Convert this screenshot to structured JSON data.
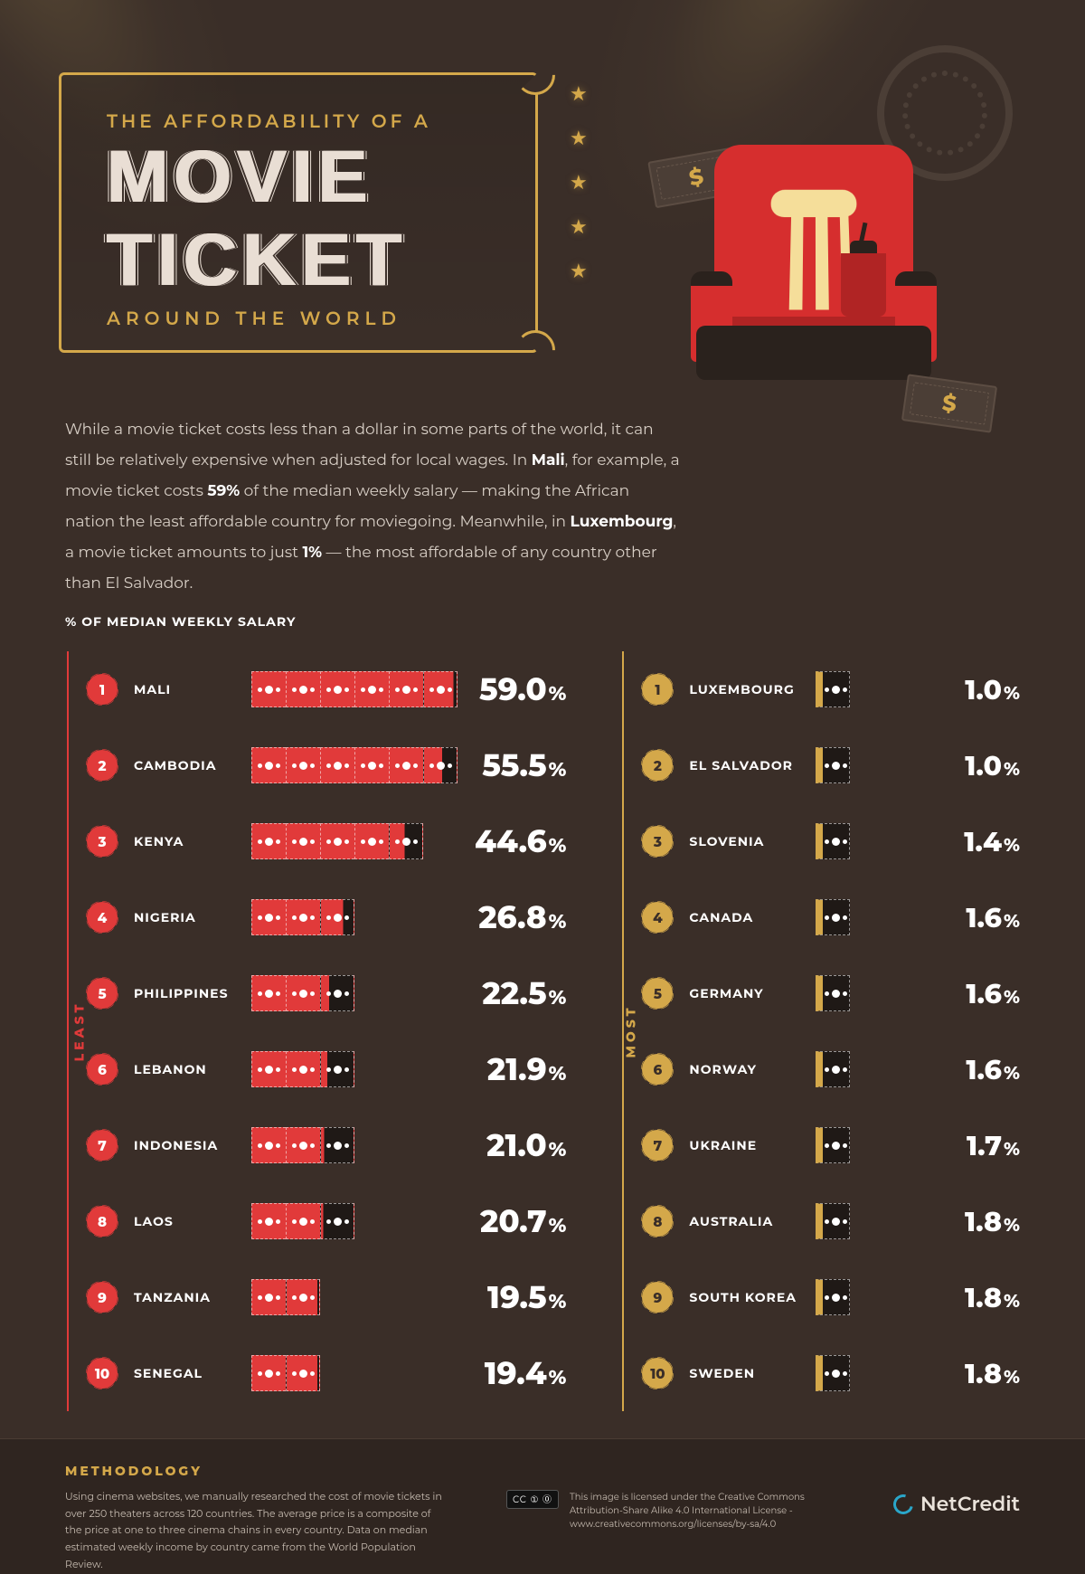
{
  "title": {
    "pre": "THE AFFORDABILITY OF A",
    "line1": "MOVIE",
    "line2": "TICKET",
    "post": "AROUND THE WORLD"
  },
  "intro_html": "While a movie ticket costs less than a dollar in some parts of the world, it can still be relatively expensive when adjusted for local wages. In <b>Mali</b>, for example, a movie ticket costs <b>59%</b> of the median weekly salary — making the African nation the least affordable country for moviegoing. Meanwhile, in <b>Luxembourg</b>, a movie ticket amounts to just <b>1%</b> — the most affordable of any country other than El Salvador.",
  "legend": "% OF MEDIAN WEEKLY SALARY",
  "side_labels": {
    "least": "LEAST",
    "most": "MOST"
  },
  "colors": {
    "bg": "#3a2e28",
    "gold": "#d4a84a",
    "red": "#e13a3a",
    "note_dark": "#1f1916"
  },
  "chart": {
    "type": "infographic",
    "least_note_unit_pct": 10,
    "least_notes_max": 6,
    "most_notes_count": 1
  },
  "least": [
    {
      "rank": "1",
      "country": "MALI",
      "pct": "59.0"
    },
    {
      "rank": "2",
      "country": "CAMBODIA",
      "pct": "55.5"
    },
    {
      "rank": "3",
      "country": "KENYA",
      "pct": "44.6"
    },
    {
      "rank": "4",
      "country": "NIGERIA",
      "pct": "26.8"
    },
    {
      "rank": "5",
      "country": "PHILIPPINES",
      "pct": "22.5"
    },
    {
      "rank": "6",
      "country": "LEBANON",
      "pct": "21.9"
    },
    {
      "rank": "7",
      "country": "INDONESIA",
      "pct": "21.0"
    },
    {
      "rank": "8",
      "country": "LAOS",
      "pct": "20.7"
    },
    {
      "rank": "9",
      "country": "TANZANIA",
      "pct": "19.5"
    },
    {
      "rank": "10",
      "country": "SENEGAL",
      "pct": "19.4"
    }
  ],
  "most": [
    {
      "rank": "1",
      "country": "LUXEMBOURG",
      "pct": "1.0"
    },
    {
      "rank": "2",
      "country": "EL SALVADOR",
      "pct": "1.0"
    },
    {
      "rank": "3",
      "country": "SLOVENIA",
      "pct": "1.4"
    },
    {
      "rank": "4",
      "country": "CANADA",
      "pct": "1.6"
    },
    {
      "rank": "5",
      "country": "GERMANY",
      "pct": "1.6"
    },
    {
      "rank": "6",
      "country": "NORWAY",
      "pct": "1.6"
    },
    {
      "rank": "7",
      "country": "UKRAINE",
      "pct": "1.7"
    },
    {
      "rank": "8",
      "country": "AUSTRALIA",
      "pct": "1.8"
    },
    {
      "rank": "9",
      "country": "SOUTH KOREA",
      "pct": "1.8"
    },
    {
      "rank": "10",
      "country": "SWEDEN",
      "pct": "1.8"
    }
  ],
  "footer": {
    "meth_title": "METHODOLOGY",
    "meth_text": "Using cinema websites, we manually researched the cost of movie tickets in over 250 theaters across 120 countries. The average price is a composite of the price at one to three cinema chains in every country. Data on median estimated weekly income by country came from the World Population Review.",
    "cc_badge": "CC ① ⓪",
    "cc_text": "This image is licensed under the Creative Commons Attribution-Share Alike 4.0 International License - www.creativecommons.org/licenses/by-sa/4.0",
    "brand": "NetCredit"
  }
}
